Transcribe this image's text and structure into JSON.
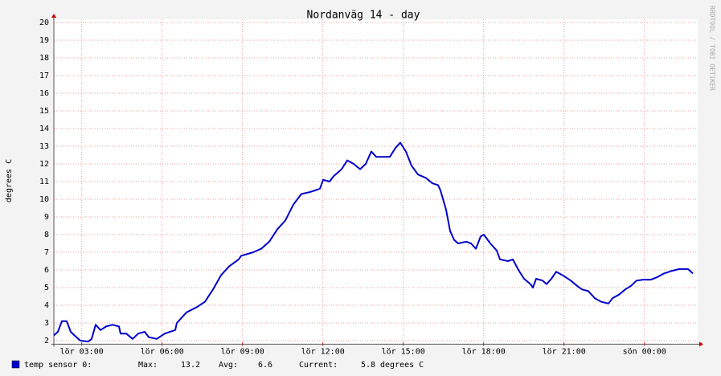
{
  "chart_data": {
    "type": "line",
    "title": "Nordanväg 14 - day",
    "y_label": "degrees C",
    "watermark": "RRDTOOL / TOBI OETIKER",
    "x": [
      1.96,
      2.11,
      2.26,
      2.44,
      2.59,
      2.8,
      2.95,
      3.25,
      3.37,
      3.52,
      3.7,
      3.91,
      4.15,
      4.39,
      4.45,
      4.66,
      4.9,
      5.11,
      5.35,
      5.5,
      5.8,
      6.1,
      6.49,
      6.55,
      6.91,
      7.3,
      7.6,
      7.9,
      8.2,
      8.5,
      8.86,
      8.95,
      9.4,
      9.7,
      10,
      10.3,
      10.6,
      10.9,
      11.2,
      11.5,
      11.71,
      11.89,
      12.01,
      12.25,
      12.4,
      12.7,
      12.91,
      13.15,
      13.39,
      13.6,
      13.81,
      13.99,
      14.29,
      14.5,
      14.71,
      14.89,
      15.1,
      15.31,
      15.55,
      15.85,
      16.09,
      16.3,
      16.39,
      16.6,
      16.75,
      16.9,
      17.05,
      17.35,
      17.53,
      17.71,
      17.89,
      18.01,
      18.25,
      18.49,
      18.61,
      18.91,
      19.09,
      19.3,
      19.51,
      19.75,
      19.84,
      19.96,
      20.2,
      20.35,
      20.53,
      20.71,
      20.95,
      21.25,
      21.49,
      21.67,
      21.91,
      22.15,
      22.39,
      22.66,
      22.81,
      23.05,
      23.29,
      23.5,
      23.71,
      23.95,
      24.25,
      24.49,
      24.73,
      25.03,
      25.3,
      25.63,
      25.81
    ],
    "series": [
      {
        "name": "temp sensor 0:",
        "color": "#0000cc",
        "values": [
          2.3,
          2.5,
          3.1,
          3.1,
          2.5,
          2.2,
          2.0,
          1.95,
          2.1,
          2.9,
          2.6,
          2.8,
          2.9,
          2.8,
          2.4,
          2.4,
          2.1,
          2.4,
          2.5,
          2.2,
          2.1,
          2.4,
          2.6,
          3.0,
          3.6,
          3.9,
          4.2,
          4.9,
          5.7,
          6.2,
          6.6,
          6.8,
          7.0,
          7.2,
          7.6,
          8.3,
          8.8,
          9.7,
          10.3,
          10.4,
          10.5,
          10.6,
          11.1,
          11.0,
          11.3,
          11.7,
          12.2,
          12.0,
          11.7,
          12.0,
          12.7,
          12.4,
          12.4,
          12.4,
          12.9,
          13.2,
          12.7,
          11.9,
          11.4,
          11.2,
          10.9,
          10.8,
          10.5,
          9.4,
          8.2,
          7.7,
          7.5,
          7.6,
          7.5,
          7.2,
          7.9,
          8.0,
          7.5,
          7.1,
          6.6,
          6.5,
          6.6,
          6.0,
          5.5,
          5.2,
          5.0,
          5.5,
          5.4,
          5.2,
          5.5,
          5.9,
          5.7,
          5.4,
          5.1,
          4.9,
          4.8,
          4.4,
          4.2,
          4.1,
          4.4,
          4.6,
          4.9,
          5.1,
          5.4,
          5.45,
          5.45,
          5.6,
          5.8,
          5.95,
          6.05,
          6.05,
          5.8
        ]
      }
    ],
    "legend_stats": [
      {
        "label": "Max:",
        "value": 13.2
      },
      {
        "label": "Avg:",
        "value": 6.6
      },
      {
        "label": "Current:",
        "value": 5.8,
        "unit": "degrees C"
      }
    ],
    "xlim": [
      1.96,
      25.96
    ],
    "ylim": [
      1.8,
      20
    ],
    "xticks": [
      {
        "value": 3,
        "label": "lör 03:00"
      },
      {
        "value": 6,
        "label": "lör 06:00"
      },
      {
        "value": 9,
        "label": "lör 09:00"
      },
      {
        "value": 12,
        "label": "lör 12:00"
      },
      {
        "value": 15,
        "label": "lör 15:00"
      },
      {
        "value": 18,
        "label": "lör 18:00"
      },
      {
        "value": 21,
        "label": "lör 21:00"
      },
      {
        "value": 24,
        "label": "sön 00:00"
      }
    ],
    "yticks": [
      2,
      3,
      4,
      5,
      6,
      7,
      8,
      9,
      10,
      11,
      12,
      13,
      14,
      15,
      16,
      17,
      18,
      19,
      20
    ],
    "grid": true
  }
}
